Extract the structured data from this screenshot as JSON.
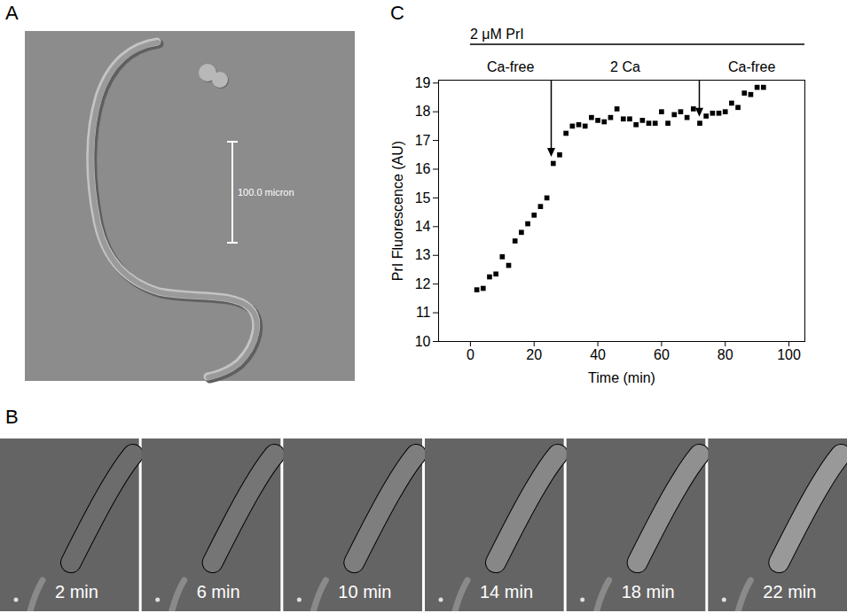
{
  "panel_A": {
    "letter": "A",
    "scale_bar_label": "100.0 micron"
  },
  "panel_B": {
    "letter": "B",
    "frame_labels": [
      "2 min",
      "6 min",
      "10 min",
      "14 min",
      "18 min",
      "22 min"
    ]
  },
  "chart_data": {
    "letter": "C",
    "type": "scatter",
    "xlabel": "Time (min)",
    "ylabel": "PrI Fluorescence (AU)",
    "x": [
      2,
      4,
      6,
      8,
      10,
      12,
      14,
      16,
      18,
      20,
      22,
      24,
      26,
      28,
      30,
      32,
      34,
      36,
      38,
      40,
      42,
      44,
      46,
      48,
      50,
      52,
      54,
      56,
      58,
      60,
      62,
      64,
      66,
      68,
      70,
      72,
      74,
      76,
      78,
      80,
      82,
      84,
      86,
      88,
      90,
      92
    ],
    "values": [
      11.8,
      11.85,
      12.25,
      12.35,
      12.95,
      12.65,
      13.5,
      13.8,
      14.1,
      14.4,
      14.7,
      15.0,
      16.2,
      16.5,
      17.25,
      17.5,
      17.55,
      17.5,
      17.8,
      17.7,
      17.65,
      17.8,
      18.1,
      17.75,
      17.75,
      17.55,
      17.7,
      17.6,
      17.6,
      18.0,
      17.6,
      17.9,
      18.0,
      17.8,
      18.1,
      17.6,
      17.85,
      17.95,
      17.95,
      18.0,
      18.3,
      18.15,
      18.65,
      18.6,
      18.85,
      18.85
    ],
    "color": "#000000",
    "marker": "square",
    "xlim": [
      -10,
      105
    ],
    "xticks": [
      0,
      20,
      40,
      60,
      80,
      100
    ],
    "ylim": [
      10,
      19.1
    ],
    "yticks": [
      10,
      11,
      12,
      13,
      14,
      15,
      16,
      17,
      18,
      19
    ],
    "grid": false,
    "treatment": {
      "label": "2 μM PrI",
      "start": 0,
      "end": 105
    },
    "periods": [
      {
        "label": "Ca-free",
        "start": 0,
        "end": 25.5
      },
      {
        "label": "2 Ca",
        "start": 25.5,
        "end": 72
      },
      {
        "label": "Ca-free",
        "start": 72,
        "end": 105
      }
    ]
  }
}
